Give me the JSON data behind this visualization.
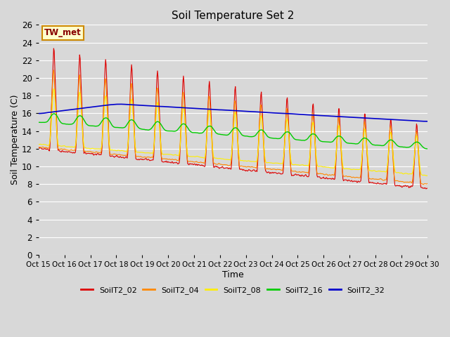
{
  "title": "Soil Temperature Set 2",
  "xlabel": "Time",
  "ylabel": "Soil Temperature (C)",
  "annotation_text": "TW_met",
  "ylim": [
    0,
    26
  ],
  "yticks": [
    0,
    2,
    4,
    6,
    8,
    10,
    12,
    14,
    16,
    18,
    20,
    22,
    24,
    26
  ],
  "xtick_labels": [
    "Oct 15",
    "Oct 16",
    "Oct 17",
    "Oct 18",
    "Oct 19",
    "Oct 20",
    "Oct 21",
    "Oct 22",
    "Oct 23",
    "Oct 24",
    "Oct 25",
    "Oct 26",
    "Oct 27",
    "Oct 28",
    "Oct 29",
    "Oct 30"
  ],
  "series_colors": {
    "SoilT2_02": "#dd0000",
    "SoilT2_04": "#ff8800",
    "SoilT2_08": "#ffee00",
    "SoilT2_16": "#00cc00",
    "SoilT2_32": "#0000cc"
  },
  "fig_bg": "#d8d8d8",
  "plot_bg": "#d8d8d8",
  "grid_color": "#ffffff"
}
